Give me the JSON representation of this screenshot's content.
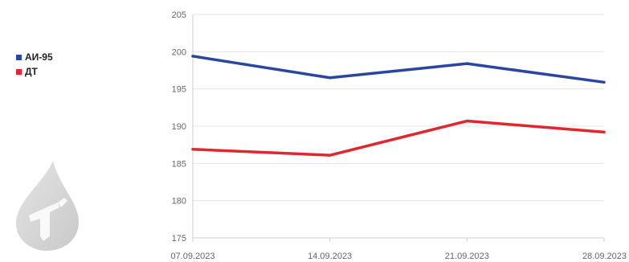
{
  "chart_data": {
    "type": "line",
    "x": [
      "07.09.2023",
      "14.09.2023",
      "21.09.2023",
      "28.09.2023"
    ],
    "series": [
      {
        "name": "АИ-95",
        "values": [
          199.4,
          196.5,
          198.4,
          195.9
        ],
        "color": "#2a46a0"
      },
      {
        "name": "ДТ",
        "values": [
          186.9,
          186.1,
          190.7,
          189.2
        ],
        "color": "#e0262e"
      }
    ],
    "yticks": [
      "175",
      "180",
      "185",
      "190",
      "195",
      "200",
      "205"
    ],
    "ylim": [
      175,
      205
    ],
    "grid": true,
    "legend_position": "left"
  },
  "icons": {
    "decor": "fuel-drop-icon"
  }
}
